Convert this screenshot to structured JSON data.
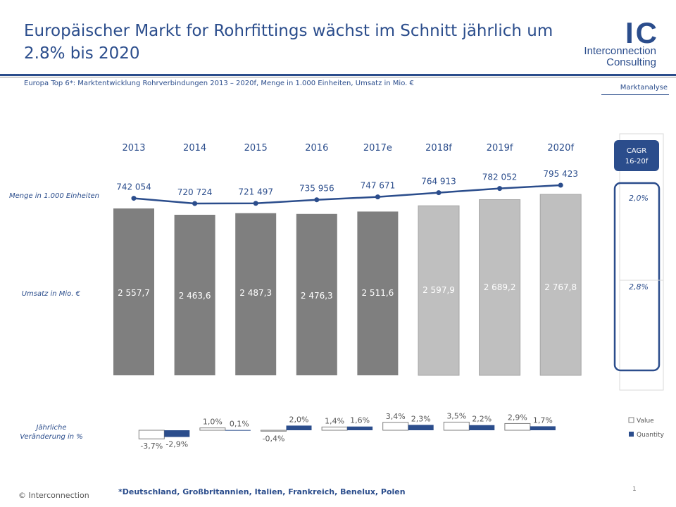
{
  "header": {
    "title": "Europäischer Markt for Rohrfittings wächst im Schnitt jährlich um 2.8% bis 2020",
    "subtitle": "Europa Top 6*: Marktentwicklung Rohrverbindungen 2013 – 2020f, Menge in 1.000 Einheiten, Umsatz in Mio. €",
    "section": "Marktanalyse"
  },
  "logo": {
    "mark": "IC",
    "line1": "Interconnection",
    "line2": "Consulting",
    "color": "#2b4d8c"
  },
  "footer": {
    "copyright": "© Interconnection",
    "footnote": "*Deutschland, Großbritannien, Italien, Frankreich, Benelux, Polen",
    "page": "1"
  },
  "chart_data": {
    "type": "bar",
    "categories": [
      "2013",
      "2014",
      "2015",
      "2016",
      "2017e",
      "2018f",
      "2019f",
      "2020f"
    ],
    "label_quantity": "Menge in 1.000 Einheiten",
    "label_revenue": "Umsatz in Mio. €",
    "label_change": "Jährliche Veränderung in %",
    "revenue": {
      "values": [
        2557.7,
        2463.6,
        2487.3,
        2476.3,
        2511.6,
        2597.9,
        2689.2,
        2767.8
      ],
      "labels": [
        "2 557,7",
        "2 463,6",
        "2 487,3",
        "2 476,3",
        "2 511,6",
        "2 597,9",
        "2 689,2",
        "2 767,8"
      ],
      "color_actual": "#7f7f7f",
      "color_forecast": "#bfbfbf"
    },
    "quantity": {
      "values": [
        742054,
        720724,
        721497,
        735956,
        747671,
        764913,
        782052,
        795423
      ],
      "labels": [
        "742 054",
        "720 724",
        "721 497",
        "735 956",
        "747 671",
        "764 913",
        "782 052",
        "795 423"
      ],
      "color": "#2b4d8c"
    },
    "change_value": {
      "name": "Value",
      "values": [
        -3.7,
        1.0,
        -0.4,
        1.4,
        3.4,
        3.5,
        2.9
      ],
      "labels": [
        "-3,7%",
        "1,0%",
        "-0,4%",
        "1,4%",
        "3,4%",
        "3,5%",
        "2,9%"
      ]
    },
    "change_quantity": {
      "name": "Quantity",
      "values": [
        -2.9,
        0.1,
        2.0,
        1.6,
        2.3,
        2.2,
        1.7
      ],
      "labels": [
        "-2,9%",
        "0,1%",
        "2,0%",
        "1,6%",
        "2,3%",
        "2,2%",
        "1,7%"
      ]
    },
    "cagr": {
      "title": "CAGR 16-20f",
      "quantity": "2,0%",
      "revenue": "2,8%"
    }
  }
}
